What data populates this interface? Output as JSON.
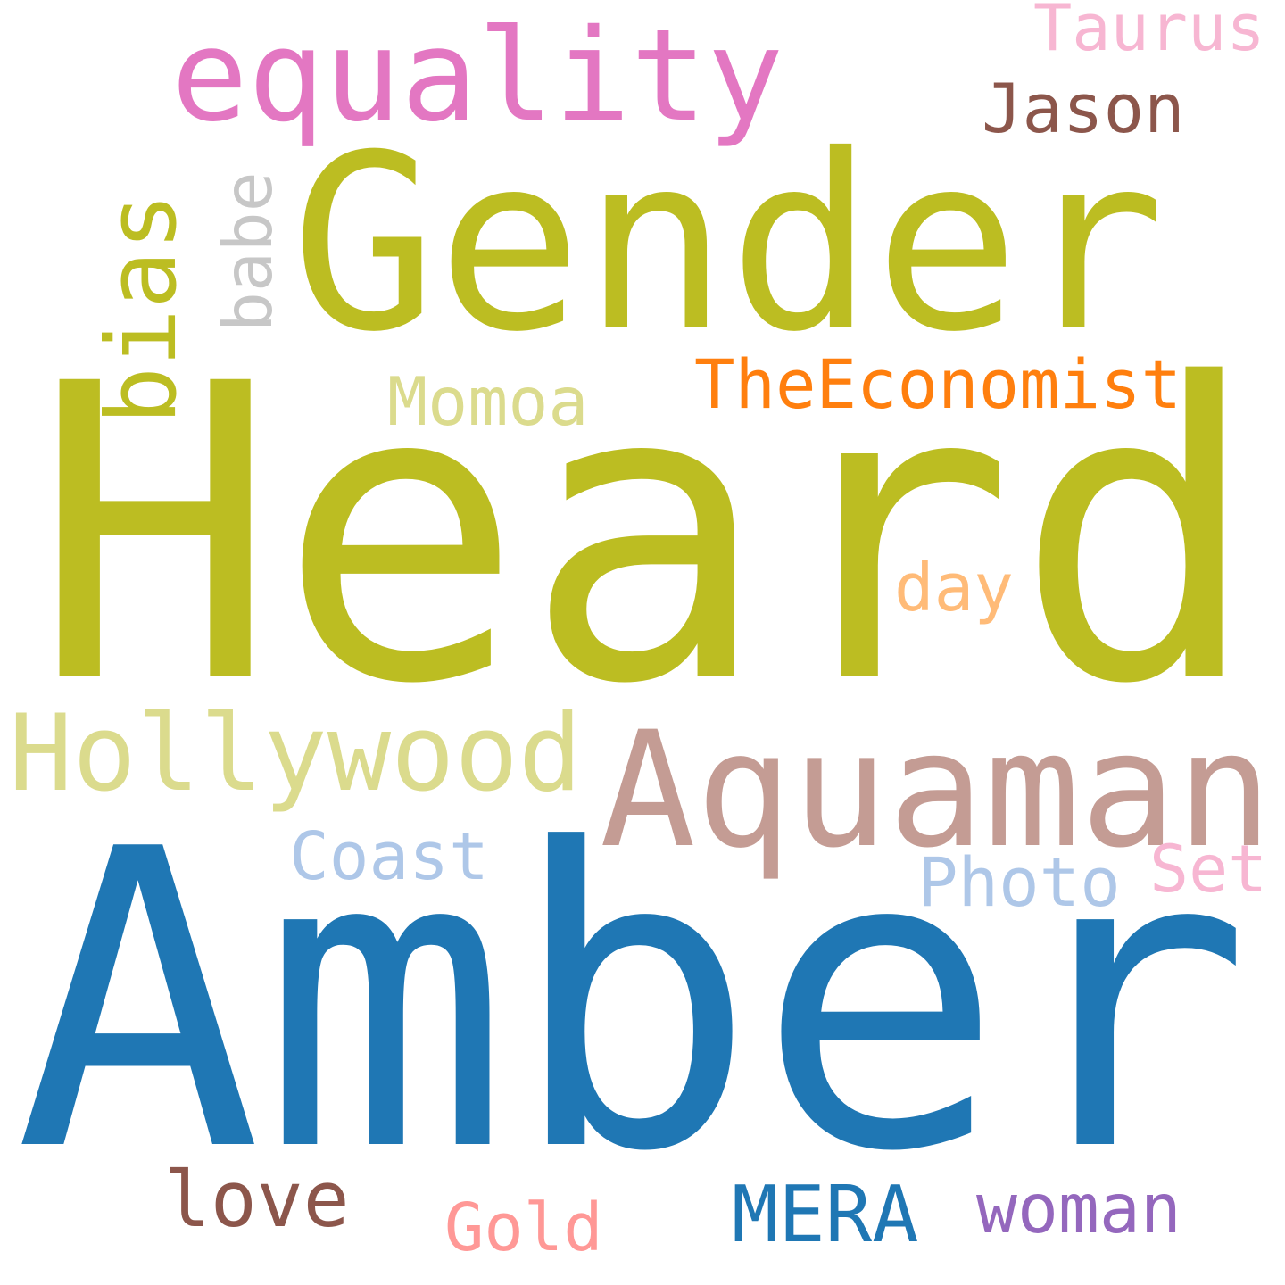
{
  "words": [
    {
      "text": "Heard",
      "color": "#bcbd22"
    },
    {
      "text": "Amber",
      "color": "#1f77b4"
    },
    {
      "text": "Gender",
      "color": "#bcbd22"
    },
    {
      "text": "Aquaman",
      "color": "#c49c94"
    },
    {
      "text": "equality",
      "color": "#e377c2"
    },
    {
      "text": "Hollywood",
      "color": "#dbdb8d"
    },
    {
      "text": "TheEconomist",
      "color": "#ff7f0e"
    },
    {
      "text": "Taurus",
      "color": "#f7b6d2"
    },
    {
      "text": "Jason",
      "color": "#8c564b"
    },
    {
      "text": "Momoa",
      "color": "#dbdb8d"
    },
    {
      "text": "bias",
      "color": "#bcbd22"
    },
    {
      "text": "babe",
      "color": "#c7c7c7"
    },
    {
      "text": "day",
      "color": "#ffbb78"
    },
    {
      "text": "Coast",
      "color": "#aec7e8"
    },
    {
      "text": "Photo",
      "color": "#aec7e8"
    },
    {
      "text": "Set",
      "color": "#f7b6d2"
    },
    {
      "text": "love",
      "color": "#8c564b"
    },
    {
      "text": "Gold",
      "color": "#ff9896"
    },
    {
      "text": "MERA",
      "color": "#1f77b4"
    },
    {
      "text": "woman",
      "color": "#9467bd"
    }
  ]
}
